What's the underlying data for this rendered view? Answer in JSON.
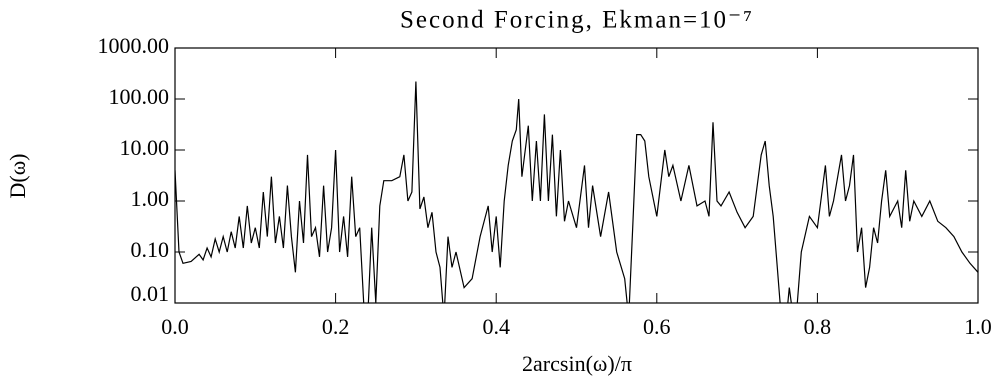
{
  "chart_data": {
    "type": "line",
    "title": "Second Forcing, Ekman=10⁻⁷",
    "x_label": "2arcsin(ω)/π",
    "y_label": "D(ω)",
    "log_y": true,
    "color": "#000000",
    "xlim": [
      0,
      1
    ],
    "ylim": [
      0.01,
      1000
    ],
    "xticks": [
      {
        "value": 0,
        "label": "0.0"
      },
      0.2,
      0.4,
      0.6,
      0.8,
      {
        "value": 1,
        "label": "1.0"
      }
    ],
    "yticks": [
      {
        "value": 1000,
        "label": "1000.00"
      },
      {
        "value": 100,
        "label": "100.00"
      },
      {
        "value": 10,
        "label": "10.00"
      },
      {
        "value": 1,
        "label": "1.00"
      },
      {
        "value": 0.1,
        "label": "0.10"
      },
      {
        "value": 0.01,
        "label": "0.01"
      }
    ],
    "x": [
      0,
      0.005,
      0.01,
      0.02,
      0.03,
      0.035,
      0.04,
      0.045,
      0.05,
      0.055,
      0.06,
      0.065,
      0.07,
      0.075,
      0.08,
      0.085,
      0.09,
      0.095,
      0.1,
      0.105,
      0.11,
      0.115,
      0.12,
      0.125,
      0.13,
      0.135,
      0.14,
      0.145,
      0.15,
      0.155,
      0.16,
      0.165,
      0.17,
      0.175,
      0.18,
      0.185,
      0.19,
      0.195,
      0.2,
      0.205,
      0.21,
      0.215,
      0.22,
      0.225,
      0.23,
      0.235,
      0.24,
      0.245,
      0.25,
      0.255,
      0.26,
      0.27,
      0.28,
      0.285,
      0.29,
      0.295,
      0.3,
      0.305,
      0.31,
      0.315,
      0.32,
      0.325,
      0.33,
      0.335,
      0.34,
      0.345,
      0.35,
      0.36,
      0.37,
      0.38,
      0.39,
      0.395,
      0.4,
      0.405,
      0.41,
      0.415,
      0.42,
      0.425,
      0.428,
      0.432,
      0.44,
      0.445,
      0.45,
      0.455,
      0.46,
      0.465,
      0.47,
      0.475,
      0.48,
      0.485,
      0.49,
      0.5,
      0.51,
      0.515,
      0.52,
      0.53,
      0.54,
      0.55,
      0.56,
      0.565,
      0.57,
      0.575,
      0.58,
      0.585,
      0.59,
      0.6,
      0.61,
      0.615,
      0.62,
      0.63,
      0.64,
      0.65,
      0.66,
      0.665,
      0.67,
      0.675,
      0.68,
      0.69,
      0.7,
      0.71,
      0.72,
      0.73,
      0.735,
      0.74,
      0.745,
      0.75,
      0.755,
      0.76,
      0.765,
      0.77,
      0.775,
      0.78,
      0.79,
      0.8,
      0.81,
      0.815,
      0.82,
      0.83,
      0.835,
      0.84,
      0.845,
      0.85,
      0.855,
      0.86,
      0.865,
      0.87,
      0.875,
      0.88,
      0.885,
      0.89,
      0.9,
      0.905,
      0.91,
      0.915,
      0.92,
      0.93,
      0.94,
      0.95,
      0.96,
      0.97,
      0.98,
      0.99,
      1
    ],
    "values": [
      4,
      0.1,
      0.06,
      0.065,
      0.09,
      0.07,
      0.12,
      0.08,
      0.18,
      0.1,
      0.2,
      0.1,
      0.25,
      0.12,
      0.5,
      0.12,
      0.8,
      0.15,
      0.3,
      0.12,
      1.5,
      0.2,
      3,
      0.15,
      0.5,
      0.12,
      2,
      0.2,
      0.04,
      1,
      0.15,
      8,
      0.2,
      0.3,
      0.08,
      2,
      0.1,
      0.3,
      10,
      0.1,
      0.5,
      0.08,
      3,
      0.2,
      0.3,
      0.01,
      0.005,
      0.3,
      0.01,
      0.8,
      2.5,
      2.5,
      3,
      8,
      1,
      1.5,
      220,
      0.7,
      1.2,
      0.3,
      0.6,
      0.1,
      0.05,
      0.005,
      0.2,
      0.05,
      0.1,
      0.02,
      0.03,
      0.2,
      0.8,
      0.1,
      0.5,
      0.05,
      1,
      5,
      15,
      25,
      100,
      3,
      30,
      1,
      15,
      1,
      50,
      1,
      20,
      0.5,
      10,
      0.4,
      1,
      0.3,
      5,
      0.3,
      2,
      0.2,
      1.5,
      0.1,
      0.03,
      0.005,
      0.3,
      20,
      20,
      15,
      3,
      0.5,
      10,
      3,
      5,
      1,
      5,
      0.8,
      1,
      0.5,
      35,
      1,
      0.8,
      1.5,
      0.6,
      0.3,
      0.5,
      8,
      15,
      2,
      0.5,
      0.05,
      0.005,
      0.003,
      0.02,
      0.005,
      0.01,
      0.1,
      0.5,
      0.3,
      5,
      0.5,
      1,
      8,
      1,
      2,
      8,
      0.1,
      0.3,
      0.02,
      0.05,
      0.3,
      0.15,
      1,
      4,
      0.5,
      1,
      0.3,
      4,
      0.4,
      1,
      0.5,
      1,
      0.4,
      0.3,
      0.2,
      0.1,
      0.06,
      0.04
    ]
  }
}
